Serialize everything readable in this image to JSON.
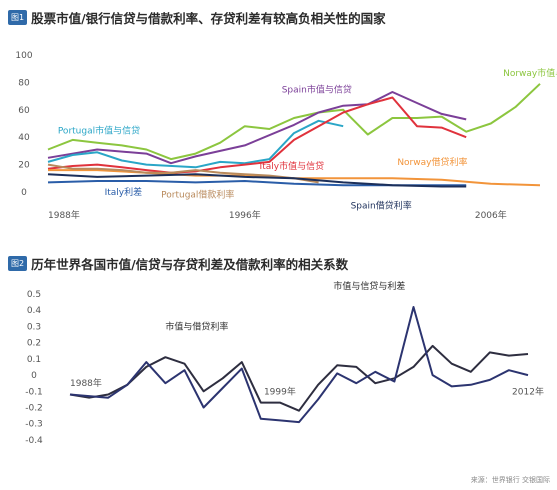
{
  "figures": [
    {
      "badge": "图1",
      "title": "股票市值/银行信贷与借款利率、存贷利差有较高负相关性的国家"
    },
    {
      "badge": "图2",
      "title": "历年世界各国市值/信贷与存贷利差及借款利率的相关系数"
    }
  ],
  "source": "来源：世界银行 交银国际",
  "colors": {
    "norway_mv": "#8cc63f",
    "spain_mv": "#7b3f98",
    "portugal_mv": "#2aa6c7",
    "italy_mv": "#e0323c",
    "norway_lr": "#f2943a",
    "portugal_lr": "#b98a5c",
    "italy_lr": "#2a5da8",
    "spain_lr": "#1c2f5a",
    "fig2_a": "#2e2e40",
    "fig2_b": "#2c3470"
  },
  "chart_data": [
    {
      "type": "line",
      "title": "股票市值/银行信贷与借款利率、存贷利差有较高负相关性的国家",
      "x_ticks": [
        "1988年",
        "1996年",
        "2006年"
      ],
      "y_ticks": [
        "0",
        "20",
        "40",
        "60",
        "80",
        "100"
      ],
      "ylim": [
        0,
        100
      ],
      "xlim": [
        1988,
        2008
      ],
      "series": [
        {
          "name": "Norway市值与信贷",
          "color": "norway_mv",
          "x": [
            1988,
            1989,
            1990,
            1991,
            1992,
            1993,
            1994,
            1995,
            1996,
            1997,
            1998,
            1999,
            2000,
            2001,
            2002,
            2003,
            2004,
            2005,
            2006,
            2007,
            2008
          ],
          "y": [
            31,
            38,
            36,
            34,
            31,
            24,
            28,
            36,
            48,
            46,
            54,
            58,
            60,
            42,
            54,
            54,
            55,
            44,
            50,
            62,
            79
          ]
        },
        {
          "name": "Spain市值与信贷",
          "color": "spain_mv",
          "x": [
            1988,
            1990,
            1992,
            1993,
            1994,
            1996,
            1998,
            1999,
            2000,
            2001,
            2002,
            2003,
            2004,
            2005
          ],
          "y": [
            25,
            31,
            28,
            21,
            26,
            34,
            49,
            58,
            63,
            64,
            73,
            65,
            57,
            53
          ]
        },
        {
          "name": "Portugal市值与信贷",
          "color": "portugal_mv",
          "x": [
            1988,
            1989,
            1990,
            1991,
            1992,
            1994,
            1995,
            1996,
            1997,
            1998,
            1999,
            2000
          ],
          "y": [
            22,
            27,
            29,
            23,
            20,
            18,
            22,
            21,
            24,
            43,
            52,
            48
          ]
        },
        {
          "name": "Italy市值与信贷",
          "color": "italy_mv",
          "x": [
            1988,
            1989,
            1990,
            1991,
            1992,
            1993,
            1994,
            1995,
            1996,
            1997,
            1998,
            1999,
            2000,
            2001,
            2002,
            2003,
            2004,
            2005
          ],
          "y": [
            17,
            19,
            20,
            18,
            16,
            14,
            15,
            18,
            20,
            22,
            38,
            48,
            58,
            64,
            69,
            48,
            47,
            40
          ]
        },
        {
          "name": "Norway借贷利率",
          "color": "norway_lr",
          "x": [
            1988,
            1990,
            1992,
            1994,
            1996,
            1998,
            2000,
            2002,
            2004,
            2006,
            2008
          ],
          "y": [
            16,
            16,
            14,
            12,
            12,
            10,
            10,
            10,
            9,
            6,
            5
          ]
        },
        {
          "name": "Portugal借款利率",
          "color": "portugal_lr",
          "x": [
            1988,
            1989,
            1990,
            1991,
            1992,
            1993,
            1994,
            1995,
            1996,
            1997,
            1998,
            1999
          ],
          "y": [
            20,
            17,
            17,
            16,
            14,
            14,
            16,
            14,
            13,
            12,
            10,
            7
          ]
        },
        {
          "name": "Italy利差",
          "color": "italy_lr",
          "x": [
            1988,
            1990,
            1992,
            1994,
            1996,
            1998,
            2000,
            2002,
            2004,
            2005
          ],
          "y": [
            7,
            8,
            8,
            7,
            8,
            6,
            5,
            5,
            5,
            5
          ]
        },
        {
          "name": "Spain借贷利率",
          "color": "spain_lr",
          "x": [
            1988,
            1990,
            1992,
            1994,
            1996,
            1998,
            2000,
            2002,
            2004,
            2005
          ],
          "y": [
            13,
            11,
            12,
            13,
            11,
            10,
            7,
            5,
            4,
            4
          ]
        }
      ],
      "labels": [
        {
          "text": "Norway市值与信贷",
          "series": "Norway市值与信贷",
          "x": 2006.5,
          "y": 87
        },
        {
          "text": "Spain市值与信贷",
          "series": "Spain市值与信贷",
          "x": 1997.5,
          "y": 75
        },
        {
          "text": "Portugal市值与信贷",
          "series": "Portugal市值与信贷",
          "x": 1988.4,
          "y": 45
        },
        {
          "text": "Italy市值与信贷",
          "series": "Italy市值与信贷",
          "x": 1996.6,
          "y": 19
        },
        {
          "text": "Norway借贷利率",
          "series": "Norway借贷利率",
          "x": 2002.2,
          "y": 22
        },
        {
          "text": "Portugal借款利率",
          "series": "Portugal借款利率",
          "x": 1992.6,
          "y": -2
        },
        {
          "text": "Italy利差",
          "series": "Italy利差",
          "x": 1990.3,
          "y": 0
        },
        {
          "text": "Spain借贷利率",
          "series": "Spain借贷利率",
          "x": 2000.3,
          "y": -10
        }
      ]
    },
    {
      "type": "line",
      "title": "历年世界各国市值/信贷与存贷利差及借款利率的相关系数",
      "y_ticks": [
        "0.5",
        "0.4",
        "0.3",
        "0.2",
        "0.1",
        "0",
        "-0.1",
        "-0.2",
        "-0.3",
        "-0.4"
      ],
      "ylim": [
        -0.45,
        0.5
      ],
      "xlim": [
        1988,
        2012
      ],
      "annotations": [
        {
          "text": "1988年",
          "x": 1988,
          "y": -0.05
        },
        {
          "text": "1999年",
          "x": 1999,
          "y": -0.1
        },
        {
          "text": "2012年",
          "x": 2012,
          "y": -0.1
        }
      ],
      "series": [
        {
          "name": "市值与借贷利率",
          "color": "fig2_a",
          "x": [
            1988,
            1989,
            1990,
            1991,
            1992,
            1993,
            1994,
            1995,
            1996,
            1997,
            1998,
            1999,
            2000,
            2001,
            2002,
            2003,
            2004,
            2005,
            2006,
            2007,
            2008,
            2009,
            2010,
            2011,
            2012
          ],
          "y": [
            -0.12,
            -0.14,
            -0.12,
            -0.06,
            0.05,
            0.11,
            0.07,
            -0.1,
            -0.02,
            0.08,
            -0.17,
            -0.17,
            -0.22,
            -0.06,
            0.06,
            0.05,
            -0.05,
            -0.02,
            0.05,
            0.18,
            0.07,
            0.02,
            0.14,
            0.12,
            0.13
          ]
        },
        {
          "name": "市值与信贷与利差",
          "color": "fig2_b",
          "x": [
            1988,
            1989,
            1990,
            1991,
            1992,
            1993,
            1994,
            1995,
            1996,
            1997,
            1998,
            1999,
            2000,
            2001,
            2002,
            2003,
            2004,
            2005,
            2006,
            2007,
            2008,
            2009,
            2010,
            2011,
            2012
          ],
          "y": [
            -0.12,
            -0.13,
            -0.14,
            -0.06,
            0.08,
            -0.05,
            0.03,
            -0.2,
            -0.08,
            0.04,
            -0.27,
            -0.28,
            -0.29,
            -0.15,
            0.01,
            -0.05,
            0.02,
            -0.04,
            0.42,
            0.0,
            -0.07,
            -0.06,
            -0.03,
            0.03,
            0.0
          ]
        }
      ],
      "labels": [
        {
          "text": "市值与借贷利率",
          "series": "市值与借贷利率",
          "x": 1993,
          "y": 0.3
        },
        {
          "text": "市值与信贷与利差",
          "series": "市值与信贷与利差",
          "x": 2001.8,
          "y": 0.55
        }
      ]
    }
  ]
}
